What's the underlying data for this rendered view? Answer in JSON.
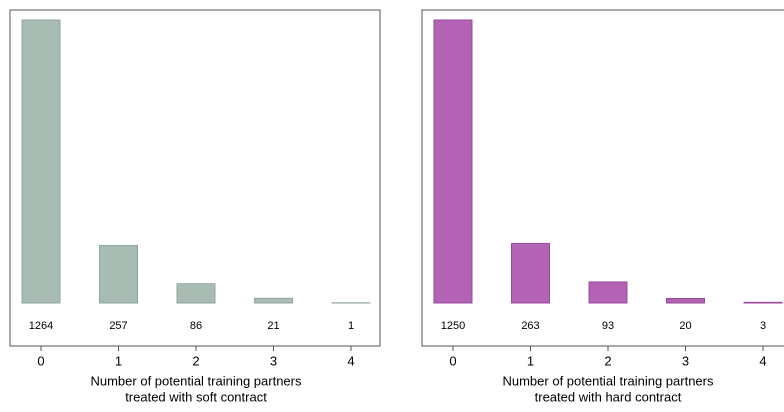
{
  "chart_data": [
    {
      "type": "bar",
      "categories": [
        "0",
        "1",
        "2",
        "3",
        "4"
      ],
      "values": [
        1264,
        257,
        86,
        21,
        1
      ],
      "color": "#a8bcb4",
      "edge_color": "#8fa69d",
      "xlabel": [
        "Number of potential training partners",
        "treated with soft contract"
      ]
    },
    {
      "type": "bar",
      "categories": [
        "0",
        "1",
        "2",
        "3",
        "4"
      ],
      "values": [
        1250,
        263,
        93,
        20,
        3
      ],
      "color": "#b263b3",
      "edge_color": "#9a4a9b",
      "xlabel": [
        "Number of potential training partners",
        "treated with hard contract"
      ]
    }
  ]
}
